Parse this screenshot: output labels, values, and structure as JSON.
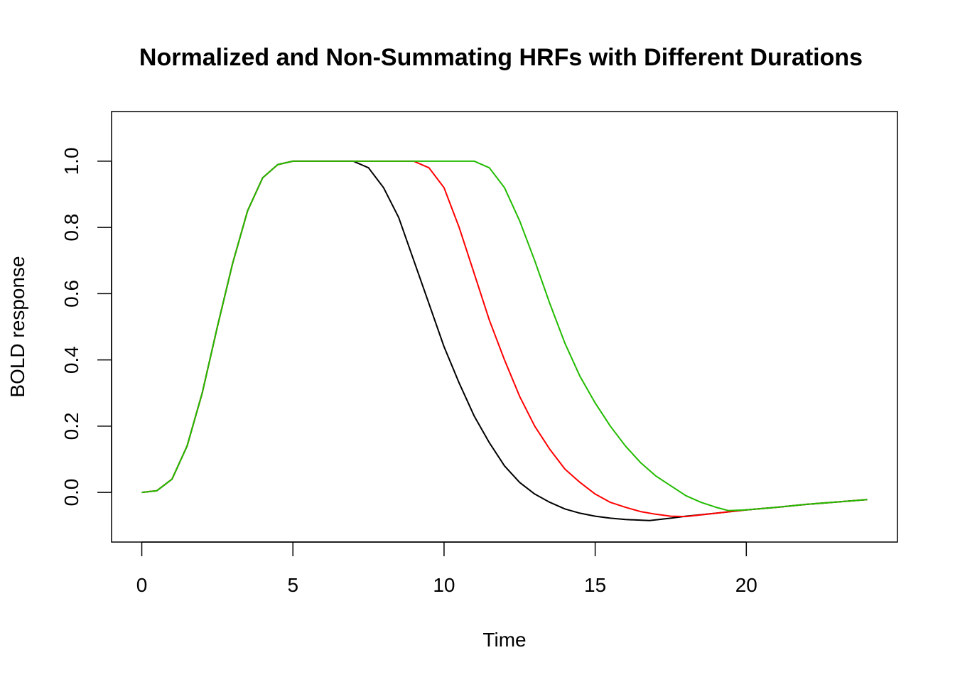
{
  "chart_data": {
    "type": "line",
    "title": "Normalized and Non-Summating HRFs with Different Durations",
    "xlabel": "Time",
    "ylabel": "BOLD response",
    "xlim": [
      -1,
      25
    ],
    "ylim": [
      -0.15,
      1.15
    ],
    "xticks": [
      0,
      5,
      10,
      15,
      20
    ],
    "yticks": [
      0.0,
      0.2,
      0.4,
      0.6,
      0.8,
      1.0
    ],
    "grid": false,
    "legend": "none",
    "series": [
      {
        "color": "#000000",
        "x": [
          0,
          0.5,
          1,
          1.5,
          2,
          2.5,
          3,
          3.5,
          4,
          4.5,
          5,
          6,
          7,
          7.5,
          8,
          8.5,
          9,
          9.5,
          10,
          10.5,
          11,
          11.5,
          12,
          12.5,
          13,
          13.5,
          14,
          14.5,
          15,
          15.5,
          16,
          16.8,
          17.5,
          18,
          19,
          20,
          21,
          22,
          23,
          24
        ],
        "y": [
          0.0,
          0.005,
          0.04,
          0.14,
          0.3,
          0.5,
          0.69,
          0.85,
          0.95,
          0.99,
          1.0,
          1.0,
          1.0,
          0.98,
          0.92,
          0.83,
          0.7,
          0.57,
          0.44,
          0.33,
          0.23,
          0.15,
          0.08,
          0.03,
          -0.005,
          -0.03,
          -0.05,
          -0.063,
          -0.072,
          -0.078,
          -0.082,
          -0.085,
          -0.078,
          -0.072,
          -0.063,
          -0.053,
          -0.045,
          -0.036,
          -0.029,
          -0.022
        ]
      },
      {
        "color": "#ff0000",
        "x": [
          0,
          0.5,
          1,
          1.5,
          2,
          2.5,
          3,
          3.5,
          4,
          4.5,
          5,
          6,
          7,
          8,
          9,
          9.5,
          10,
          10.5,
          11,
          11.5,
          12,
          12.5,
          13,
          13.5,
          14,
          14.5,
          15,
          15.5,
          16,
          16.5,
          17,
          17.5,
          18,
          19,
          20,
          21,
          22,
          23,
          24
        ],
        "y": [
          0.0,
          0.005,
          0.04,
          0.14,
          0.3,
          0.5,
          0.69,
          0.85,
          0.95,
          0.99,
          1.0,
          1.0,
          1.0,
          1.0,
          1.0,
          0.98,
          0.92,
          0.8,
          0.66,
          0.52,
          0.4,
          0.29,
          0.2,
          0.13,
          0.07,
          0.03,
          -0.005,
          -0.03,
          -0.045,
          -0.058,
          -0.066,
          -0.072,
          -0.073,
          -0.063,
          -0.053,
          -0.045,
          -0.036,
          -0.029,
          -0.022
        ]
      },
      {
        "color": "#22bb00",
        "x": [
          0,
          0.5,
          1,
          1.5,
          2,
          2.5,
          3,
          3.5,
          4,
          4.5,
          5,
          6,
          7,
          8,
          9,
          10,
          11,
          11.5,
          12,
          12.5,
          13,
          13.5,
          14,
          14.5,
          15,
          15.5,
          16,
          16.5,
          17,
          17.5,
          18,
          18.5,
          19,
          19.4,
          20,
          21,
          22,
          23,
          24
        ],
        "y": [
          0.0,
          0.005,
          0.04,
          0.14,
          0.3,
          0.5,
          0.69,
          0.85,
          0.95,
          0.99,
          1.0,
          1.0,
          1.0,
          1.0,
          1.0,
          1.0,
          1.0,
          0.98,
          0.92,
          0.82,
          0.7,
          0.57,
          0.45,
          0.35,
          0.27,
          0.2,
          0.14,
          0.09,
          0.05,
          0.02,
          -0.01,
          -0.03,
          -0.045,
          -0.055,
          -0.053,
          -0.045,
          -0.036,
          -0.029,
          -0.022
        ]
      }
    ]
  }
}
